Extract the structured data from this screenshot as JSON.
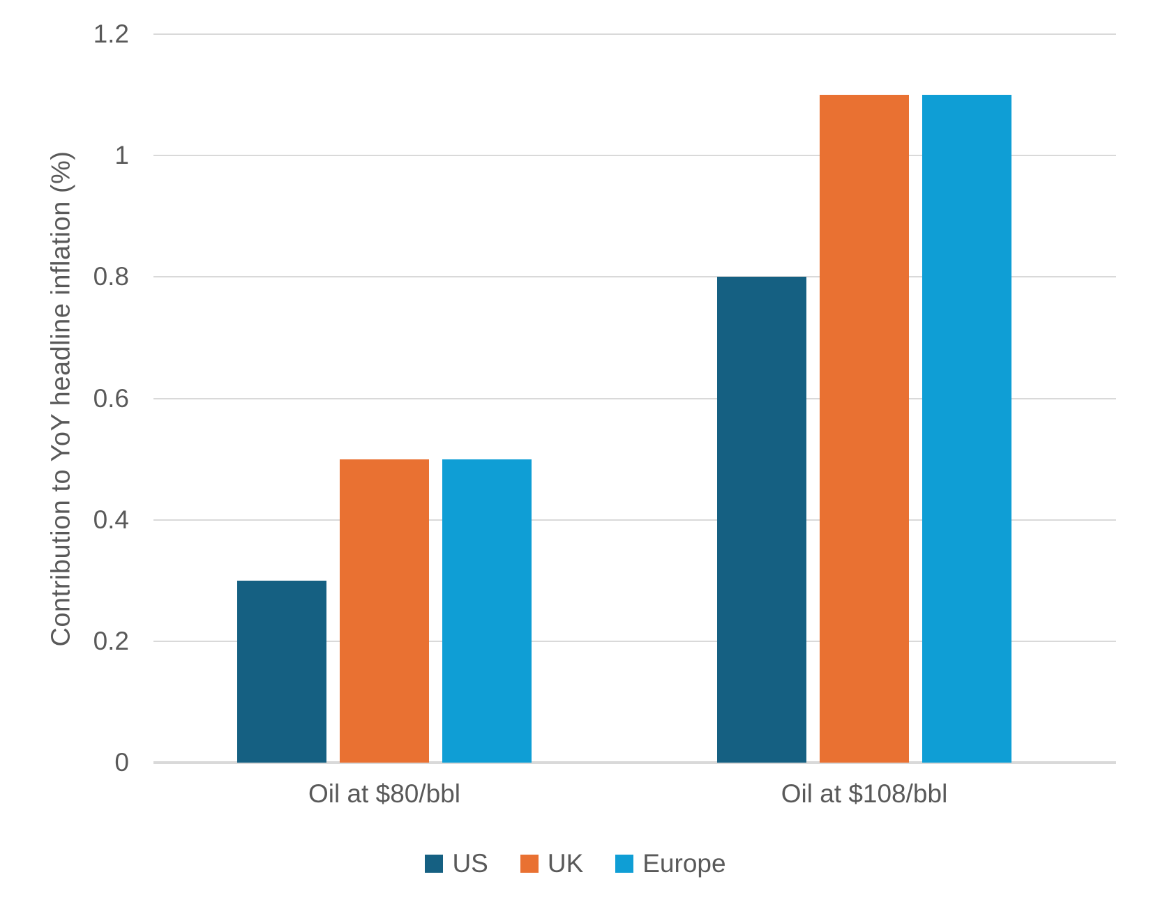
{
  "chart_data": {
    "type": "bar",
    "categories": [
      "Oil at $80/bbl",
      "Oil at $108/bbl"
    ],
    "series": [
      {
        "name": "US",
        "color": "#156082",
        "values": [
          0.3,
          0.8
        ]
      },
      {
        "name": "UK",
        "color": "#E97132",
        "values": [
          0.5,
          1.1
        ]
      },
      {
        "name": "Europe",
        "color": "#0F9ED5",
        "values": [
          0.5,
          1.1
        ]
      }
    ],
    "title": "",
    "xlabel": "",
    "ylabel": "Contribution to YoY headline inflation (%)",
    "ylim": [
      0,
      1.2
    ],
    "ytick_step": 0.2,
    "yticks": [
      "0",
      "0.2",
      "0.4",
      "0.6",
      "0.8",
      "1",
      "1.2"
    ],
    "grid": true,
    "legend_position": "bottom"
  },
  "colors": {
    "background": "#FFFFFF",
    "gridline": "#D9D9D9",
    "axis_line": "#D9D9D9",
    "text": "#595959"
  }
}
